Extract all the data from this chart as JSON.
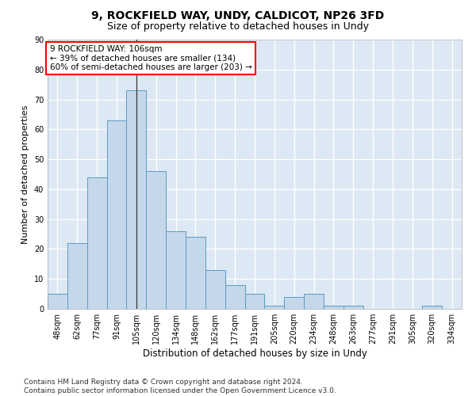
{
  "title1": "9, ROCKFIELD WAY, UNDY, CALDICOT, NP26 3FD",
  "title2": "Size of property relative to detached houses in Undy",
  "xlabel": "Distribution of detached houses by size in Undy",
  "ylabel": "Number of detached properties",
  "categories": [
    "48sqm",
    "62sqm",
    "77sqm",
    "91sqm",
    "105sqm",
    "120sqm",
    "134sqm",
    "148sqm",
    "162sqm",
    "177sqm",
    "191sqm",
    "205sqm",
    "220sqm",
    "234sqm",
    "248sqm",
    "263sqm",
    "277sqm",
    "291sqm",
    "305sqm",
    "320sqm",
    "334sqm"
  ],
  "values": [
    5,
    22,
    44,
    63,
    73,
    46,
    26,
    24,
    13,
    8,
    5,
    1,
    4,
    5,
    1,
    1,
    0,
    0,
    0,
    1,
    0
  ],
  "bar_color": "#c5d8ea",
  "bar_edge_color": "#5a9bc4",
  "vline_x": 4,
  "vline_color": "#333333",
  "annotation_line1": "9 ROCKFIELD WAY: 106sqm",
  "annotation_line2": "← 39% of detached houses are smaller (134)",
  "annotation_line3": "60% of semi-detached houses are larger (203) →",
  "annotation_box_color": "white",
  "annotation_box_edge_color": "red",
  "ylim": [
    0,
    90
  ],
  "yticks": [
    0,
    10,
    20,
    30,
    40,
    50,
    60,
    70,
    80,
    90
  ],
  "footer": "Contains HM Land Registry data © Crown copyright and database right 2024.\nContains public sector information licensed under the Open Government Licence v3.0.",
  "plot_bg_color": "#dce8f3",
  "grid_color": "white",
  "title1_fontsize": 10,
  "title2_fontsize": 9,
  "xlabel_fontsize": 8.5,
  "ylabel_fontsize": 8,
  "tick_fontsize": 7,
  "footer_fontsize": 6.5,
  "annot_fontsize": 7.5
}
